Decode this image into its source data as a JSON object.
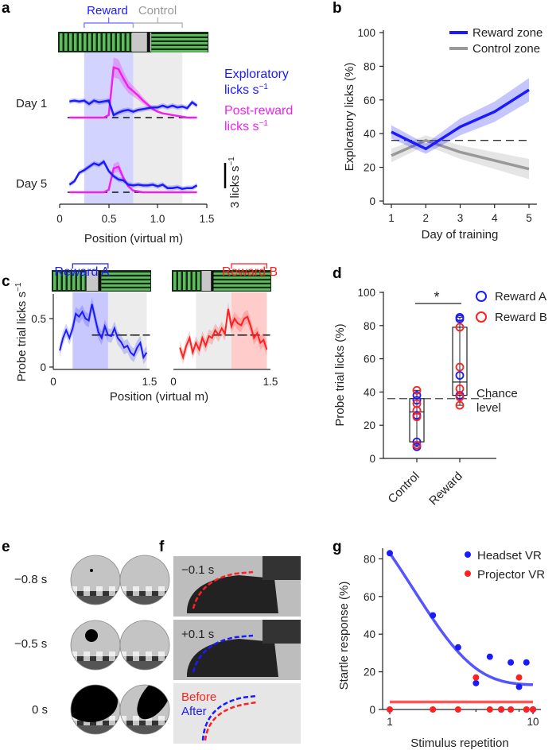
{
  "panel_labels": {
    "a": "a",
    "b": "b",
    "c": "c",
    "d": "d",
    "e": "e",
    "f": "f",
    "g": "g"
  },
  "colors": {
    "blue": "#1a1aff",
    "magenta": "#ee22ee",
    "gray": "#999999",
    "red": "#ff2020",
    "track_green": "#5cbf5c"
  },
  "chart_data": [
    {
      "panel": "a",
      "type": "line",
      "xlabel": "Position (virtual m)",
      "xticks": [
        "0",
        "0.5",
        "1.0",
        "1.5"
      ],
      "xlim": [
        0,
        1.5
      ],
      "zones": {
        "reward_label": "Reward",
        "control_label": "Control",
        "reward": [
          0.25,
          0.75
        ],
        "control": [
          0.75,
          1.25
        ]
      },
      "scale_bar": {
        "value": 3,
        "label": "3 licks s",
        "sup": "−1"
      },
      "legend": [
        {
          "name": "Exploratory",
          "line2": "licks s",
          "sup": "−1",
          "color": "#1a1aff"
        },
        {
          "name": "Post-reward",
          "line2": "licks s",
          "sup": "−1",
          "color": "#ee22ee"
        }
      ],
      "x": [
        0.1,
        0.15,
        0.2,
        0.25,
        0.3,
        0.35,
        0.4,
        0.45,
        0.5,
        0.55,
        0.6,
        0.65,
        0.7,
        0.75,
        0.8,
        0.85,
        0.9,
        0.95,
        1.0,
        1.05,
        1.1,
        1.15,
        1.2,
        1.25,
        1.3,
        1.35,
        1.4
      ],
      "rows": [
        {
          "label": "Day 1",
          "exploratory": [
            1.9,
            2.0,
            1.9,
            2.0,
            1.6,
            2.0,
            1.8,
            1.9,
            2.0,
            0.3,
            0.6,
            0.8,
            0.9,
            0.7,
            0.9,
            1.0,
            1.1,
            1.2,
            1.2,
            1.4,
            1.2,
            1.4,
            1.2,
            1.3,
            1.1,
            1.8,
            1.4
          ],
          "post_reward": [
            0,
            0,
            0,
            0,
            0,
            0,
            0,
            0,
            0.3,
            5.9,
            5.7,
            4.6,
            3.6,
            3.1,
            2.6,
            2.0,
            1.5,
            1.0,
            0.7,
            0.5,
            0.4,
            0.3,
            0.2,
            0.1,
            0,
            0,
            0
          ]
        },
        {
          "label": "Day 5",
          "exploratory": [
            0.9,
            1.3,
            2.3,
            2.6,
            3.0,
            3.4,
            3.2,
            3.6,
            2.5,
            1.9,
            1.5,
            1.4,
            0.9,
            0.8,
            0.9,
            0.8,
            0.8,
            0.9,
            0.7,
            0.9,
            0.5,
            0.5,
            0.6,
            0.4,
            0.5,
            0.5,
            0.8
          ],
          "post_reward": [
            0,
            0,
            0,
            0,
            0,
            0,
            0,
            0,
            0.3,
            2.8,
            3.0,
            1.7,
            0.7,
            0.2,
            0.1,
            0,
            0,
            0,
            0,
            0,
            0,
            0,
            0,
            0,
            0,
            0,
            0
          ]
        }
      ]
    },
    {
      "panel": "b",
      "type": "line",
      "xlabel": "Day of training",
      "ylabel": "Exploratory licks (%)",
      "ylim": [
        0,
        100
      ],
      "yticks": [
        "0",
        "20",
        "40",
        "60",
        "80",
        "100"
      ],
      "x": [
        1,
        2,
        3,
        4,
        5
      ],
      "xticks": [
        "1",
        "2",
        "3",
        "4",
        "5"
      ],
      "chance": 36,
      "legend_position": "top-right",
      "series": [
        {
          "name": "Reward zone",
          "values": [
            41,
            31,
            44,
            53,
            66
          ],
          "band": [
            4,
            3,
            5,
            6,
            7
          ],
          "color": "#1a1aff"
        },
        {
          "name": "Control zone",
          "values": [
            27,
            36,
            29,
            24,
            19
          ],
          "band": [
            4,
            3,
            4,
            5,
            6
          ],
          "color": "#999999"
        }
      ]
    },
    {
      "panel": "c",
      "type": "line",
      "ylabel": "Probe trial licks s",
      "ylabel_sup": "−1",
      "xlabel": "Position (virtual m)",
      "ylim": [
        0,
        0.7
      ],
      "yticks": [
        "0",
        "0.5"
      ],
      "xticks": [
        "0",
        "1.5"
      ],
      "chance": 0.33,
      "x": [
        0.1,
        0.15,
        0.2,
        0.25,
        0.3,
        0.35,
        0.4,
        0.45,
        0.5,
        0.55,
        0.6,
        0.65,
        0.7,
        0.75,
        0.8,
        0.85,
        0.9,
        0.95,
        1.0,
        1.05,
        1.1,
        1.15,
        1.2,
        1.25,
        1.3,
        1.35,
        1.4,
        1.45
      ],
      "series": [
        {
          "name": "Reward A",
          "color": "#1a1aff",
          "zone": [
            0.3,
            0.85
          ],
          "gray": [
            0.85,
            1.45
          ],
          "values": [
            0.17,
            0.3,
            0.38,
            0.3,
            0.4,
            0.55,
            0.52,
            0.57,
            0.5,
            0.48,
            0.65,
            0.5,
            0.36,
            0.3,
            0.42,
            0.33,
            0.32,
            0.4,
            0.3,
            0.26,
            0.2,
            0.22,
            0.15,
            0.12,
            0.2,
            0.25,
            0.1,
            0.15
          ]
        },
        {
          "name": "Reward B",
          "color": "#ff2020",
          "zone": [
            0.9,
            1.45
          ],
          "gray": [
            0.35,
            0.9
          ],
          "values": [
            0.2,
            0.1,
            0.22,
            0.3,
            0.15,
            0.25,
            0.18,
            0.3,
            0.22,
            0.32,
            0.3,
            0.38,
            0.33,
            0.4,
            0.34,
            0.6,
            0.42,
            0.5,
            0.45,
            0.43,
            0.5,
            0.52,
            0.42,
            0.3,
            0.35,
            0.25,
            0.28,
            0.18
          ]
        }
      ]
    },
    {
      "panel": "d",
      "type": "box",
      "ylabel": "Probe trial licks (%)",
      "ylim": [
        0,
        100
      ],
      "yticks": [
        "0",
        "20",
        "40",
        "60",
        "80",
        "100"
      ],
      "categories": [
        "Control",
        "Reward"
      ],
      "chance": 36,
      "chance_label": [
        "Chance",
        "level"
      ],
      "significance": "*",
      "boxes": [
        {
          "q1": 10,
          "median": 28,
          "q3": 36,
          "min": 7,
          "max": 41
        },
        {
          "q1": 38,
          "median": 46,
          "q3": 79,
          "min": 32,
          "max": 85
        }
      ],
      "legend": [
        {
          "name": "Reward A",
          "color": "#1a1aff"
        },
        {
          "name": "Reward B",
          "color": "#ff2020"
        }
      ],
      "points": {
        "Reward A": [
          [
            38,
            35,
            26,
            10,
            7
          ],
          [
            85,
            84,
            50,
            38
          ]
        ],
        "Reward B": [
          [
            41,
            33,
            29,
            25,
            8
          ],
          [
            79,
            55,
            42,
            37,
            32
          ]
        ]
      }
    },
    {
      "panel": "g",
      "type": "scatter",
      "xlabel": "Stimulus repetition",
      "ylabel": "Startle response (%)",
      "xscale": "log",
      "xticks": [
        "1",
        "10"
      ],
      "ylim": [
        0,
        85
      ],
      "yticks": [
        "0",
        "20",
        "40",
        "60",
        "80"
      ],
      "x": [
        1,
        2,
        3,
        4,
        5,
        6,
        7,
        8,
        9,
        10
      ],
      "series": [
        {
          "name": "Headset VR",
          "color": "#1a1aff",
          "values": [
            83,
            50,
            33,
            14,
            28,
            0,
            25,
            12,
            25,
            0
          ],
          "fit": {
            "type": "exponential",
            "plateau": 13,
            "amplitude": 70,
            "rate": 0.69
          }
        },
        {
          "name": "Projector VR",
          "color": "#ff2020",
          "values": [
            0,
            0,
            0,
            17,
            0,
            0,
            0,
            17,
            0,
            0
          ],
          "fit": {
            "type": "constant",
            "value": 4
          }
        }
      ]
    }
  ],
  "panel_e": {
    "labels": [
      "−0.8 s",
      "−0.5 s",
      "0 s"
    ]
  },
  "panel_f": {
    "labels": [
      "−0.1 s",
      "+0.1 s"
    ],
    "overlay_labels": [
      "Before",
      "After"
    ]
  }
}
